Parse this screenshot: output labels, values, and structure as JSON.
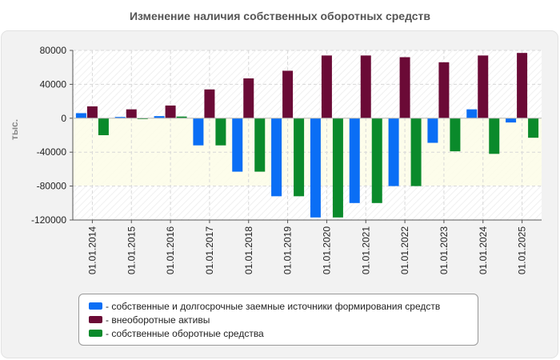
{
  "page": {
    "title": "Изменение наличия собственных оборотных средств"
  },
  "colors": {
    "series": [
      "#0a6ef5",
      "#6b0a36",
      "#0a8a2b"
    ],
    "axis": "#555555",
    "grid": "#d8d8d8",
    "panel": "#f2f2f2"
  },
  "chart_data": {
    "type": "bar",
    "title": "Изменение наличия собственных оборотных средств",
    "ylabel": "тыс.",
    "xlabel": "",
    "ylim": [
      -120000,
      80000
    ],
    "yticks": [
      80000,
      40000,
      0,
      -40000,
      -80000,
      -120000
    ],
    "ytick_labels": [
      "80000",
      "40000",
      "0",
      "-40000",
      "-80000",
      "-120000"
    ],
    "grid": true,
    "categories": [
      "01.01.2014",
      "01.01.2015",
      "01.01.2016",
      "01.01.2017",
      "01.01.2018",
      "01.01.2019",
      "01.01.2020",
      "01.01.2021",
      "01.01.2022",
      "01.01.2023",
      "01.01.2024",
      "01.01.2025"
    ],
    "series": [
      {
        "name": "- собственные и долгосрочные заемные источники формирования средств",
        "values": [
          6000,
          1500,
          2500,
          -32000,
          -63000,
          -92000,
          -117000,
          -100000,
          -80000,
          -29000,
          10500,
          -5000
        ]
      },
      {
        "name": "- внеоборотные активы",
        "values": [
          14000,
          10500,
          15000,
          34000,
          47000,
          56000,
          74000,
          74000,
          72000,
          66000,
          74000,
          77000
        ]
      },
      {
        "name": "- собственные оборотные средства",
        "values": [
          -20000,
          -1000,
          2000,
          -32000,
          -63000,
          -92000,
          -117000,
          -100000,
          -80000,
          -39000,
          -42000,
          -23000
        ]
      }
    ],
    "legend_position": "bottom"
  }
}
